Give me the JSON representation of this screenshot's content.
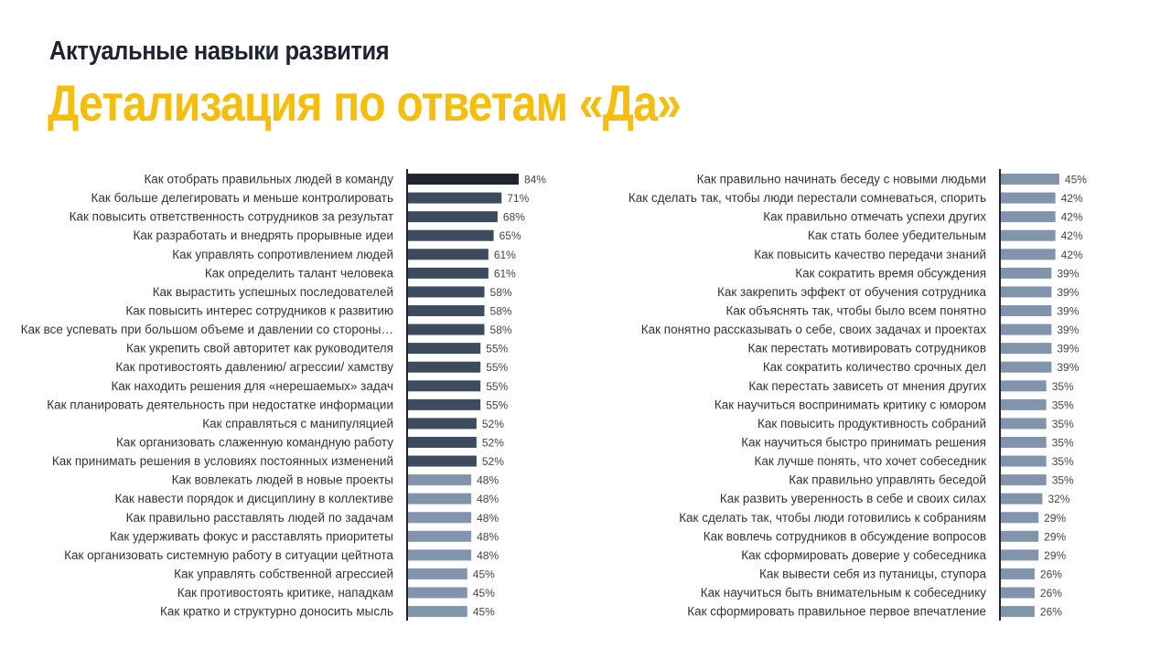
{
  "header": {
    "subtitle": "Актуальные навыки развития",
    "title": "Детализация по ответам «Да»"
  },
  "colors": {
    "title": "#f5bd0c",
    "subtitle": "#1f2430",
    "bar_top": "#1f2430",
    "bar_dark": "#3e4b5f",
    "bar_light": "#8294ab",
    "axis": "#1f2430"
  },
  "chart_data": [
    {
      "type": "bar",
      "orientation": "horizontal",
      "title": "",
      "xlabel": "",
      "ylabel": "",
      "xlim": [
        0,
        100
      ],
      "value_suffix": "%",
      "categories": [
        "Как отобрать правильных людей в команду",
        "Как больше делегировать и меньше контролировать",
        "Как повысить ответственность сотрудников за результат",
        "Как разработать и внедрять прорывные идеи",
        "Как управлять сопротивлением людей",
        "Как определить талант человека",
        "Как вырастить успешных последователей",
        "Как повысить интерес сотрудников к развитию",
        "Как все успевать при большом объеме и давлении со стороны…",
        "Как укрепить свой авторитет как руководителя",
        "Как противостоять давлению/ агрессии/ хамству",
        "Как находить решения для «нерешаемых» задач",
        "Как планировать деятельность при недостатке информации",
        "Как справляться с манипуляцией",
        "Как организовать слаженную командную работу",
        "Как принимать решения в условиях постоянных изменений",
        "Как вовлекать людей в новые проекты",
        "Как навести порядок и дисциплину в коллективе",
        "Как правильно расставлять людей по задачам",
        "Как удерживать фокус и расставлять приоритеты",
        "Как организовать системную работу в ситуации цейтнота",
        "Как управлять собственной агрессией",
        "Как противостоять критике, нападкам",
        "Как кратко и структурно доносить мысль"
      ],
      "values": [
        84,
        71,
        68,
        65,
        61,
        61,
        58,
        58,
        58,
        55,
        55,
        55,
        55,
        52,
        52,
        52,
        48,
        48,
        48,
        48,
        48,
        45,
        45,
        45
      ],
      "value_labels": [
        "84%",
        "71%",
        "68%",
        "65%",
        "61%",
        "61%",
        "58%",
        "58%",
        "58%",
        "55%",
        "55%",
        "55%",
        "55%",
        "52%",
        "52%",
        "52%",
        "48%",
        "48%",
        "48%",
        "48%",
        "48%",
        "45%",
        "45%",
        "45%"
      ]
    },
    {
      "type": "bar",
      "orientation": "horizontal",
      "title": "",
      "xlabel": "",
      "ylabel": "",
      "xlim": [
        0,
        100
      ],
      "value_suffix": "%",
      "categories": [
        "Как правильно начинать беседу с новыми людьми",
        "Как сделать так, чтобы люди перестали сомневаться, спорить",
        "Как правильно отмечать успехи других",
        "Как стать более убедительным",
        "Как повысить качество передачи знаний",
        "Как сократить время обсуждения",
        "Как закрепить эффект от обучения сотрудника",
        "Как объяснять так, чтобы было всем понятно",
        "Как понятно рассказывать о себе, своих задачах и проектах",
        "Как перестать мотивировать сотрудников",
        "Как сократить количество срочных дел",
        "Как перестать зависеть от мнения других",
        "Как научиться воспринимать критику с юмором",
        "Как повысить продуктивность собраний",
        "Как научиться быстро принимать решения",
        "Как лучше понять, что хочет собеседник",
        "Как правильно управлять беседой",
        "Как развить уверенность в себе и своих силах",
        "Как сделать так, чтобы люди готовились к собраниям",
        "Как вовлечь сотрудников в обсуждение вопросов",
        "Как сформировать доверие у собеседника",
        "Как вывести себя из путаницы, ступора",
        "Как научиться быть внимательным к собеседнику",
        "Как сформировать правильное первое впечатление"
      ],
      "values": [
        45,
        42,
        42,
        42,
        42,
        39,
        39,
        39,
        39,
        39,
        39,
        35,
        35,
        35,
        35,
        35,
        35,
        32,
        29,
        29,
        29,
        26,
        26,
        26
      ],
      "value_labels": [
        "45%",
        "42%",
        "42%",
        "42%",
        "42%",
        "39%",
        "39%",
        "39%",
        "39%",
        "39%",
        "39%",
        "35%",
        "35%",
        "35%",
        "35%",
        "35%",
        "35%",
        "32%",
        "29%",
        "29%",
        "29%",
        "26%",
        "26%",
        "26%"
      ]
    }
  ]
}
